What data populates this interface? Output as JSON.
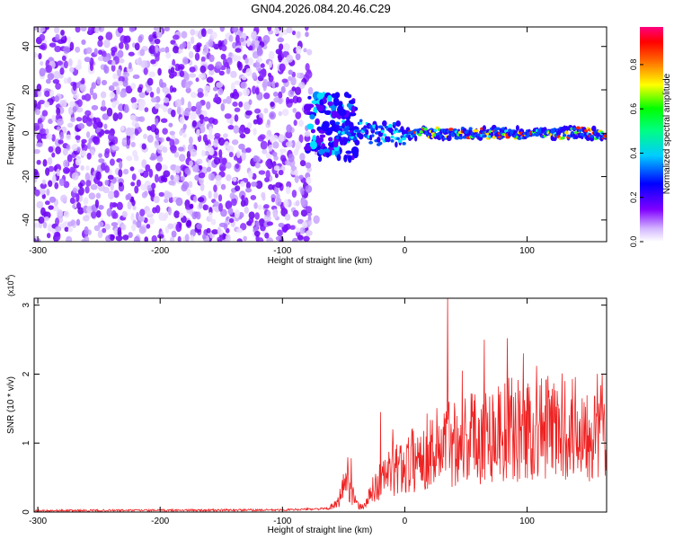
{
  "title": "GN04.2026.084.20.46.C29",
  "chart_data": [
    {
      "type": "heatmap",
      "xlabel": "Height of straight line (km)",
      "ylabel": "Frequency (Hz)",
      "xlim": [
        -303,
        165
      ],
      "ylim": [
        -50,
        49
      ],
      "xticks": [
        -300,
        -200,
        -100,
        0,
        100
      ],
      "xtick_labels": [
        "-300",
        "-200",
        "-100",
        "0",
        "100"
      ],
      "yticks": [
        -40,
        -20,
        0,
        20,
        40
      ],
      "ytick_labels": [
        "-40",
        "-20",
        "0",
        "20",
        "40"
      ],
      "noise_region_x": [
        -303,
        -77
      ],
      "signal_region_x": [
        -80,
        165
      ],
      "signal_center_freq_hz": 0,
      "colorbar": {
        "label": "Normalized spectral amplitude",
        "range": [
          0,
          0.97
        ],
        "ticks": [
          0,
          0.2,
          0.4,
          0.6,
          0.8
        ],
        "tick_labels": [
          "0.0",
          "0.2",
          "0.4",
          "0.6",
          "0.8"
        ],
        "colormap": [
          "#ffffff",
          "#8000ff",
          "#0000ff",
          "#00ffff",
          "#00ff00",
          "#ffff00",
          "#ff0000",
          "#ff00ff"
        ]
      }
    },
    {
      "type": "line",
      "xlabel": "Height of straight line (km)",
      "ylabel": "SNR (10 * v/v)",
      "y_scale_label": "(x10",
      "y_scale_exp": "4",
      "y_scale_close": ")",
      "xlim": [
        -303,
        165
      ],
      "ylim": [
        0,
        3.1
      ],
      "xticks": [
        -300,
        -200,
        -100,
        0,
        100
      ],
      "xtick_labels": [
        "-300",
        "-200",
        "-100",
        "0",
        "100"
      ],
      "yticks": [
        0,
        1,
        2,
        3
      ],
      "ytick_labels": [
        "0",
        "1",
        "2",
        "3"
      ],
      "color": "#ee2222",
      "profile_points": [
        [
          -303,
          0.02
        ],
        [
          -100,
          0.03
        ],
        [
          -62,
          0.05
        ],
        [
          -55,
          0.12
        ],
        [
          -50,
          0.38
        ],
        [
          -47,
          0.52
        ],
        [
          -44,
          0.35
        ],
        [
          -40,
          0.12
        ],
        [
          -36,
          0.07
        ],
        [
          -32,
          0.12
        ],
        [
          -25,
          0.35
        ],
        [
          -15,
          0.55
        ],
        [
          0,
          0.68
        ],
        [
          20,
          0.9
        ],
        [
          40,
          1.05
        ],
        [
          60,
          1.12
        ],
        [
          80,
          1.18
        ],
        [
          100,
          1.2
        ],
        [
          130,
          1.22
        ],
        [
          165,
          1.25
        ]
      ],
      "peak_spikes": [
        [
          -44,
          0.78
        ],
        [
          -20,
          1.45
        ],
        [
          -10,
          1.2
        ],
        [
          35,
          3.12
        ],
        [
          47,
          2.05
        ],
        [
          54,
          1.72
        ],
        [
          65,
          2.5
        ],
        [
          84,
          2.52
        ],
        [
          97,
          2.3
        ],
        [
          108,
          2.12
        ],
        [
          131,
          1.9
        ]
      ]
    }
  ]
}
